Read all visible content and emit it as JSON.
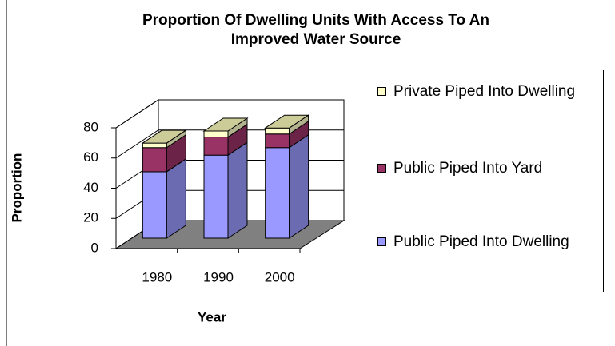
{
  "chart_data": {
    "type": "bar3d_stacked",
    "title": "Proportion Of Dwelling Units With Access To An Improved Water Source",
    "x_label": "Year",
    "y_label": "Proportion",
    "categories": [
      "1980",
      "1990",
      "2000"
    ],
    "series": [
      {
        "name": "Public Piped Into Dwelling",
        "color": "#9999ff",
        "values": [
          44,
          55,
          60
        ]
      },
      {
        "name": "Public Piped Into Yard",
        "color": "#993366",
        "values": [
          16,
          12,
          9
        ]
      },
      {
        "name": "Private Piped Into Dwelling",
        "color": "#ffffcc",
        "values": [
          3,
          4,
          4
        ]
      }
    ],
    "ylim": [
      0,
      80
    ],
    "yticks": [
      0,
      20,
      40,
      60,
      80
    ],
    "grid": true,
    "legend": "right"
  }
}
